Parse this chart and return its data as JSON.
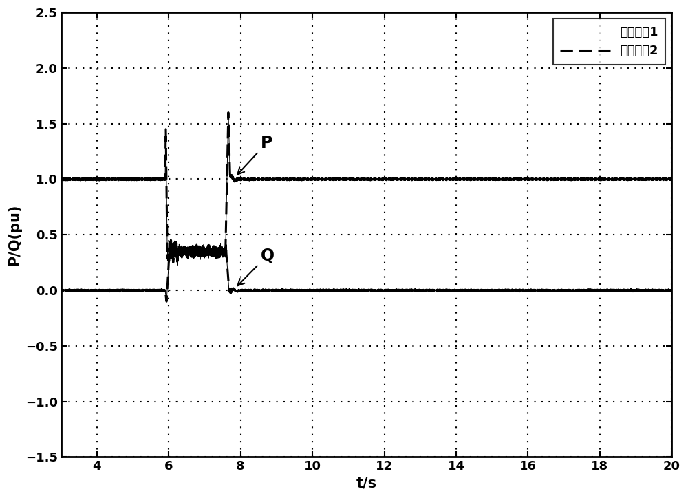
{
  "xlim": [
    3,
    20
  ],
  "ylim": [
    -1.5,
    2.5
  ],
  "xlabel": "t/s",
  "ylabel": "P/Q(pu)",
  "xticks": [
    4,
    6,
    8,
    10,
    12,
    14,
    16,
    18,
    20
  ],
  "yticks": [
    -1.5,
    -1.0,
    -0.5,
    0.0,
    0.5,
    1.0,
    1.5,
    2.0,
    2.5
  ],
  "fault_start": 5.9,
  "fault_end": 7.7,
  "P_steady": 1.0,
  "Q_steady": 0.0,
  "legend_labels": [
    "风电机组1",
    "风电机组2"
  ],
  "annotation_P": "P",
  "annotation_Q": "Q",
  "figsize": [
    10.0,
    7.24
  ],
  "dpi": 100
}
